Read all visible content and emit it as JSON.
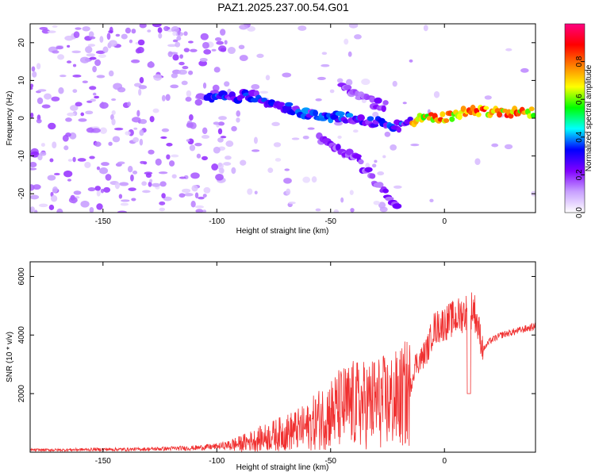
{
  "title": "PAZ1.2025.237.00.54.G01",
  "chart_data": [
    {
      "type": "heatmap",
      "xlabel": "Height of straight line (km)",
      "ylabel": "Frequency (Hz)",
      "xlim": [
        -182,
        40
      ],
      "ylim": [
        -25,
        25
      ],
      "xticks": [
        -150,
        -100,
        -50,
        0
      ],
      "yticks": [
        20,
        10,
        0,
        -10,
        -20
      ],
      "colorbar": {
        "label": "Normalized spectral amplitude",
        "range": [
          0,
          1
        ],
        "ticks": [
          "0.0",
          "0.2",
          "0.4",
          "0.6",
          "0.8"
        ],
        "colors": [
          "#ffffff",
          "#c8a0ff",
          "#8000ff",
          "#0000ff",
          "#00ffff",
          "#00ff00",
          "#ffff00",
          "#ff8000",
          "#ff0000",
          "#ff0080"
        ]
      },
      "ridges": [
        {
          "description": "main dispersed branch",
          "points": [
            [
              -108,
              5
            ],
            [
              -85,
              6
            ],
            [
              -60,
              1
            ],
            [
              -40,
              0
            ],
            [
              -20,
              -2
            ],
            [
              -10,
              0
            ],
            [
              0,
              0
            ],
            [
              10,
              2
            ],
            [
              40,
              1.5
            ]
          ]
        },
        {
          "description": "upper branch",
          "points": [
            [
              -45,
              8
            ],
            [
              -35,
              5
            ],
            [
              -25,
              3
            ]
          ]
        },
        {
          "description": "lower branch",
          "points": [
            [
              -55,
              -5
            ],
            [
              -40,
              -10
            ],
            [
              -30,
              -17
            ],
            [
              -20,
              -24
            ]
          ]
        }
      ]
    },
    {
      "type": "line",
      "xlabel": "Height of straight line (km)",
      "ylabel": "SNR (10 * v/v)",
      "xlim": [
        -182,
        40
      ],
      "ylim": [
        0,
        6500
      ],
      "xticks": [
        -150,
        -100,
        -50,
        0
      ],
      "yticks": [
        2000,
        4000,
        6000
      ],
      "color": "#f03030",
      "x": [
        -180,
        -170,
        -160,
        -150,
        -140,
        -130,
        -120,
        -110,
        -100,
        -95,
        -90,
        -85,
        -80,
        -75,
        -70,
        -65,
        -60,
        -55,
        -50,
        -45,
        -40,
        -35,
        -30,
        -25,
        -20,
        -15,
        -13,
        -10,
        -7,
        -5,
        0,
        5,
        10,
        13,
        15,
        17,
        20,
        25,
        30,
        35,
        40
      ],
      "y": [
        80,
        80,
        90,
        100,
        100,
        110,
        130,
        150,
        200,
        250,
        300,
        400,
        500,
        600,
        700,
        800,
        900,
        1200,
        1400,
        1600,
        1700,
        1700,
        1800,
        1800,
        1900,
        2200,
        3000,
        3200,
        3600,
        4200,
        4400,
        4600,
        4800,
        4900,
        4200,
        3500,
        3800,
        4000,
        4100,
        4200,
        4300
      ]
    }
  ]
}
